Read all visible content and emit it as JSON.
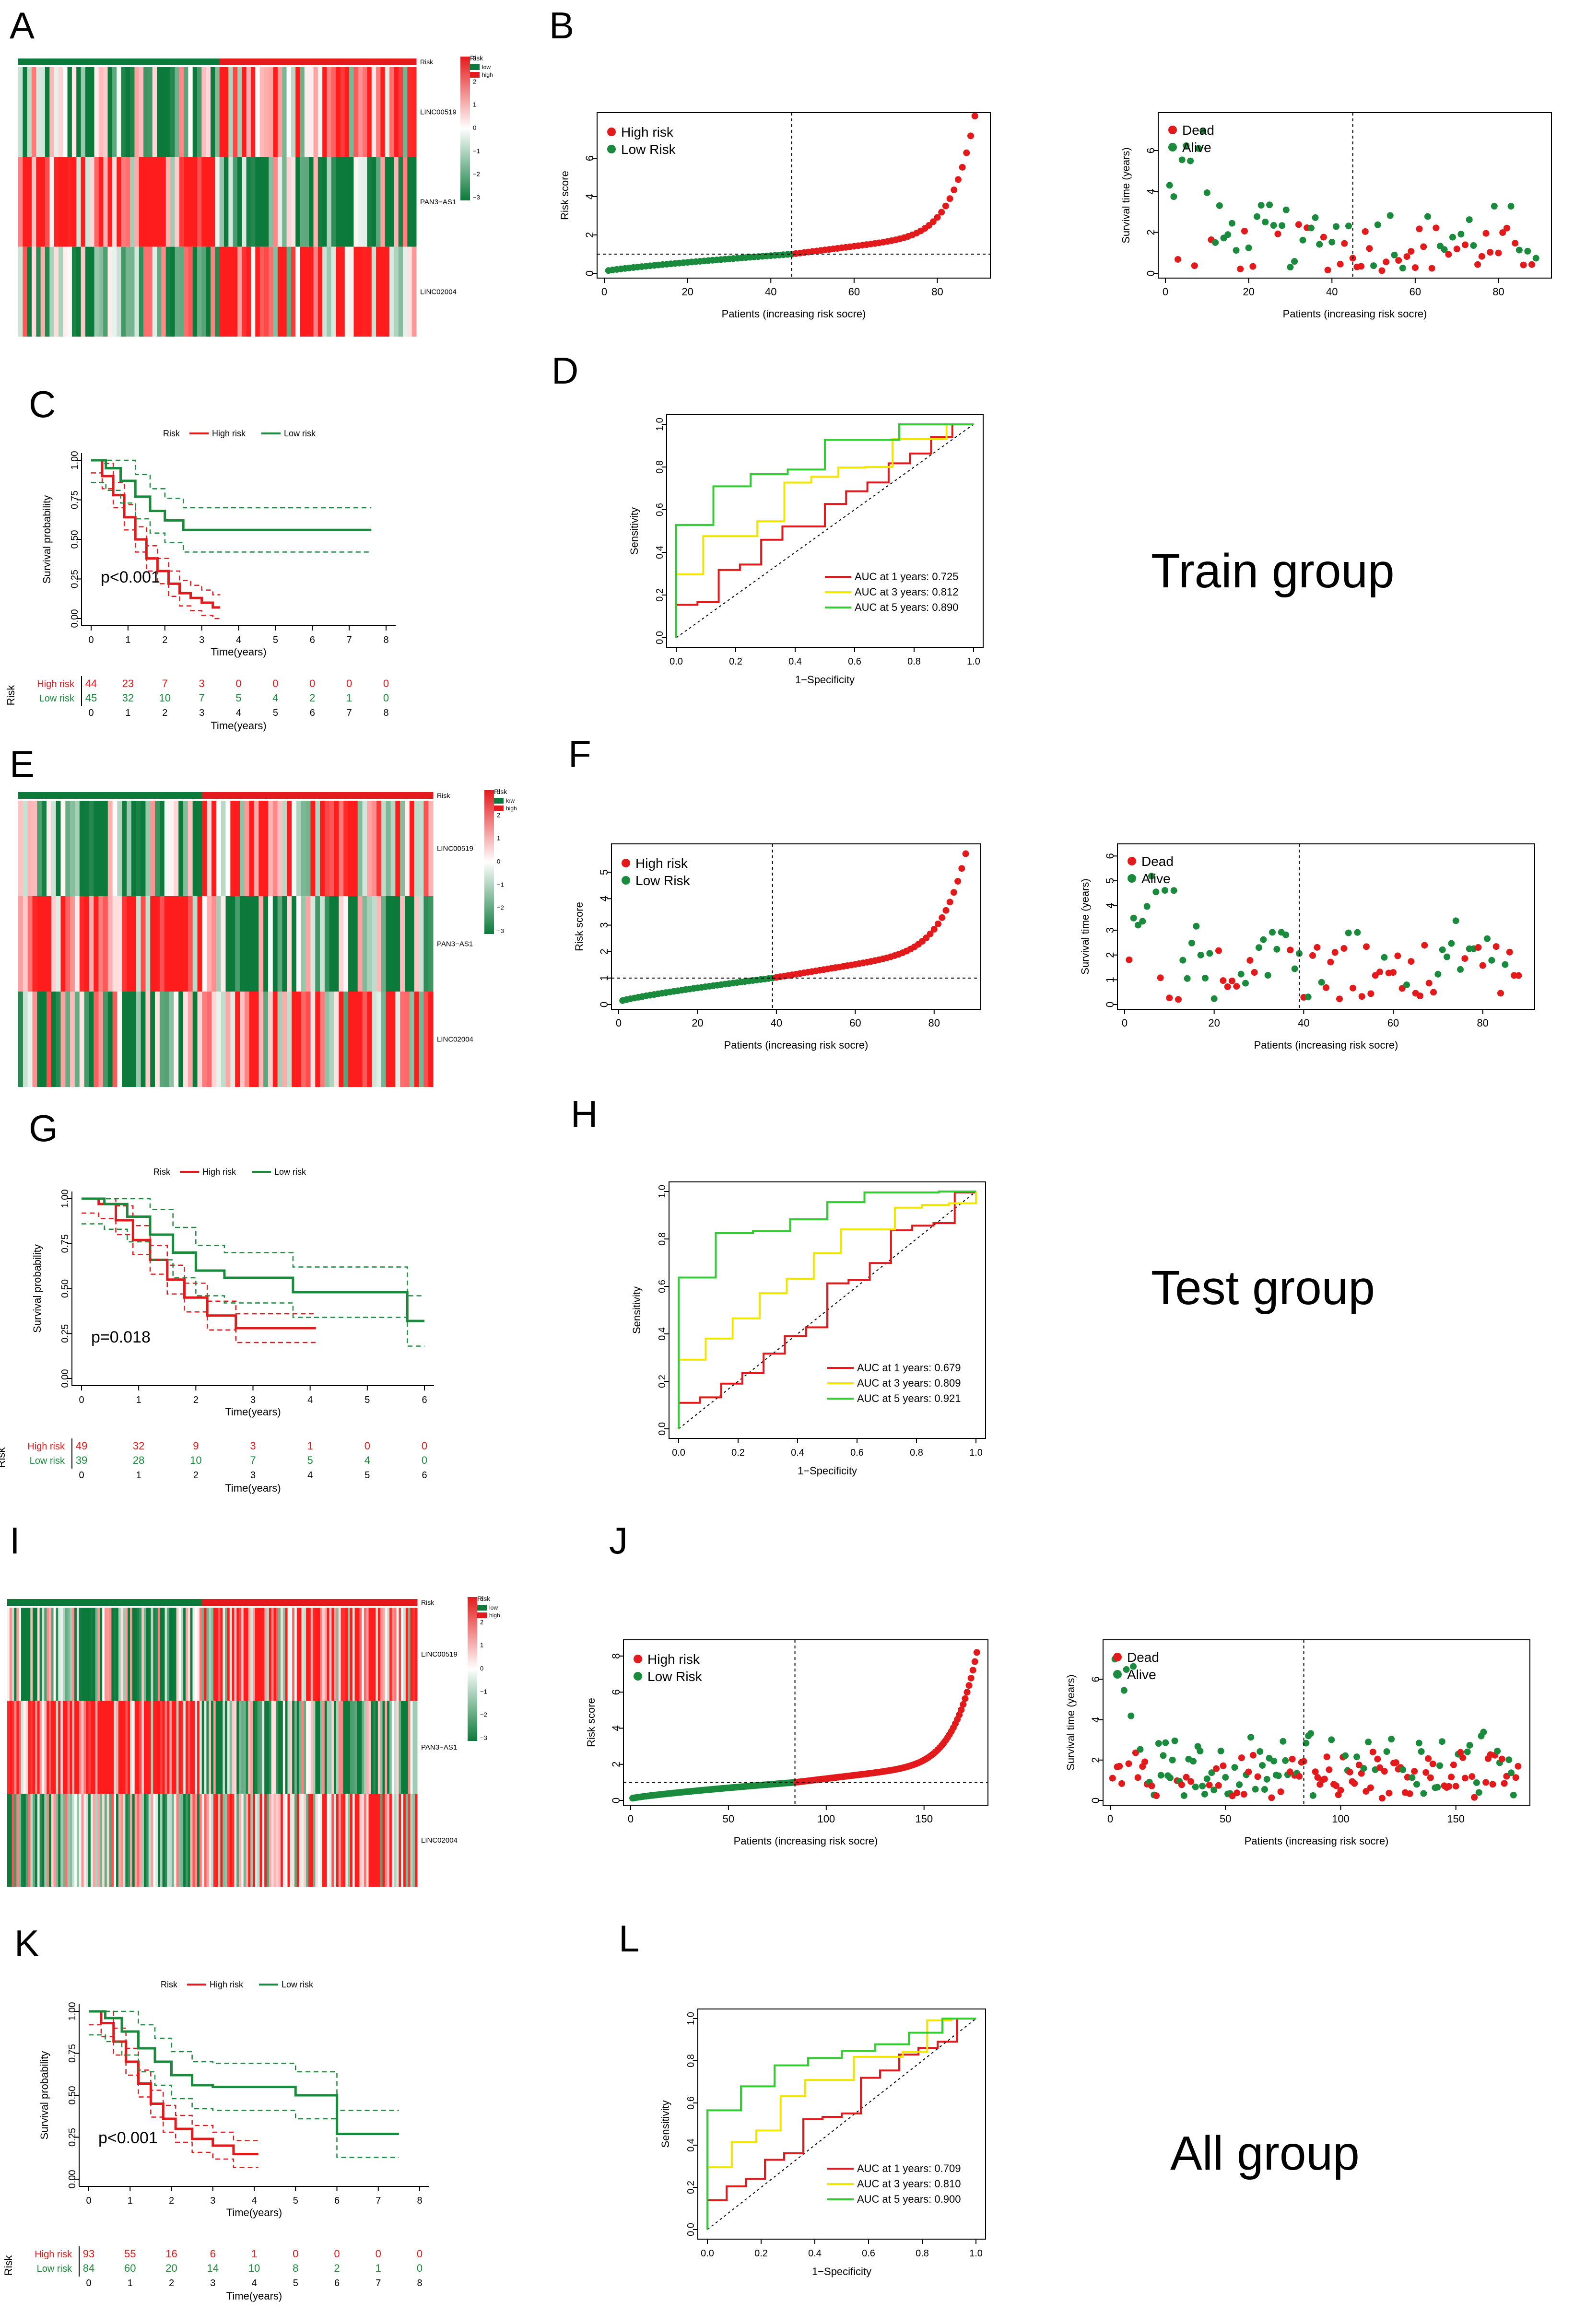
{
  "colors": {
    "high": "#e31a1c",
    "low": "#1a8a3c",
    "auc1": "#e31a1c",
    "auc3": "#f2e600",
    "auc5": "#33cc33",
    "heatRed": "#e41a1c",
    "heatGreen": "#0b7a3a"
  },
  "panel_labels": [
    "A",
    "B",
    "C",
    "D",
    "E",
    "F",
    "G",
    "H",
    "I",
    "J",
    "K",
    "L"
  ],
  "group_titles": [
    "Train group",
    "Test group",
    "All group"
  ],
  "heatmap_text": {
    "genes": [
      "LINC00519",
      "PAN3−AS1",
      "LINC02004"
    ],
    "risk_label": "Risk",
    "legend_title": "Risk",
    "legend_low": "low",
    "legend_high": "high",
    "scale_ticks": [
      "3",
      "2",
      "1",
      "0",
      "−1",
      "−2",
      "−3"
    ]
  },
  "common_text": {
    "risk_score_ylabel": "Risk score",
    "risk_xlabel": "Patients (increasing risk socre)",
    "surv_time_ylabel": "Survival time (years)",
    "high_risk": "High risk",
    "low_risk_legend": "Low Risk",
    "dead": "Dead",
    "alive": "Alive",
    "km_ylabel": "Survival probability",
    "km_xlabel": "Time(years)",
    "km_legend_title": "Risk",
    "km_legend_high": "High risk",
    "km_legend_low": "Low risk",
    "table_risk": "Risk",
    "table_high": "High risk",
    "table_low": "Low risk",
    "roc_ylabel": "Sensitivity",
    "roc_xlabel": "1−Specificity"
  },
  "chart_data": [
    {
      "id": "train_heatmap",
      "type": "heatmap",
      "n_low": 45,
      "n_high": 44,
      "genes": [
        "LINC00519",
        "PAN3−AS1",
        "LINC02004"
      ],
      "scale_range": [
        -3,
        3
      ]
    },
    {
      "id": "train_riskscore",
      "type": "scatter",
      "title": "",
      "n_patients": 89,
      "cutoff_index": 45,
      "cutoff_value": 1.0,
      "max_score": 8.2,
      "ylim": [
        0,
        8
      ],
      "yticks": [
        0,
        2,
        4,
        6
      ],
      "xticks": [
        0,
        20,
        40,
        60,
        80
      ],
      "xlabel": "Patients (increasing risk socre)",
      "ylabel": "Risk score"
    },
    {
      "id": "train_survtime",
      "type": "scatter",
      "n_patients": 89,
      "cutoff_index": 45,
      "ylim": [
        0,
        7.5
      ],
      "yticks": [
        0,
        2,
        4,
        6
      ],
      "xticks": [
        0,
        20,
        40,
        60,
        80
      ],
      "xlabel": "Patients (increasing risk socre)",
      "ylabel": "Survival time (years)"
    },
    {
      "id": "train_km",
      "type": "line",
      "pvalue": "p<0.001",
      "xlim": [
        0,
        8
      ],
      "xticks": [
        0,
        1,
        2,
        3,
        4,
        5,
        6,
        7,
        8
      ],
      "yticks": [
        "0.00",
        "0.25",
        "0.50",
        "0.75",
        "1.00"
      ],
      "series": [
        {
          "name": "High risk",
          "times": [
            0,
            0.3,
            0.6,
            0.9,
            1.2,
            1.5,
            1.8,
            2.1,
            2.4,
            2.7,
            3.0,
            3.3,
            3.5
          ],
          "surv": [
            1,
            0.9,
            0.78,
            0.64,
            0.5,
            0.38,
            0.3,
            0.22,
            0.16,
            0.13,
            0.1,
            0.07,
            0.07
          ]
        },
        {
          "name": "Low risk",
          "times": [
            0,
            0.4,
            0.8,
            1.2,
            1.6,
            2.0,
            2.5,
            3.0,
            7.6
          ],
          "surv": [
            1,
            0.95,
            0.87,
            0.77,
            0.68,
            0.62,
            0.56,
            0.56,
            0.56
          ]
        }
      ],
      "risk_table": {
        "times": [
          0,
          1,
          2,
          3,
          4,
          5,
          6,
          7,
          8
        ],
        "high": [
          "44",
          "23",
          "7",
          "3",
          "0",
          "0",
          "0",
          "0",
          "0"
        ],
        "low": [
          "45",
          "32",
          "10",
          "7",
          "5",
          "4",
          "2",
          "1",
          "0"
        ]
      }
    },
    {
      "id": "train_roc",
      "type": "line",
      "xticks": [
        "0.0",
        "0.2",
        "0.4",
        "0.6",
        "0.8",
        "1.0"
      ],
      "yticks": [
        "0.0",
        "0.2",
        "0.4",
        "0.6",
        "0.8",
        "1.0"
      ],
      "series": [
        {
          "name": "AUC at 1 years: 0.725",
          "auc": 0.725
        },
        {
          "name": "AUC at 3 years: 0.812",
          "auc": 0.812
        },
        {
          "name": "AUC at 5 years: 0.890",
          "auc": 0.89
        }
      ]
    },
    {
      "id": "test_heatmap",
      "type": "heatmap",
      "n_low": 39,
      "n_high": 49,
      "genes": [
        "LINC00519",
        "PAN3−AS1",
        "LINC02004"
      ],
      "scale_range": [
        -3,
        3
      ]
    },
    {
      "id": "test_riskscore",
      "type": "scatter",
      "n_patients": 88,
      "cutoff_index": 39,
      "cutoff_value": 1.0,
      "max_score": 5.7,
      "ylim": [
        0,
        5.8
      ],
      "yticks": [
        0,
        1,
        2,
        3,
        4,
        5
      ],
      "xticks": [
        0,
        20,
        40,
        60,
        80
      ],
      "xlabel": "Patients (increasing risk socre)",
      "ylabel": "Risk score"
    },
    {
      "id": "test_survtime",
      "type": "scatter",
      "n_patients": 88,
      "cutoff_index": 39,
      "ylim": [
        0,
        6.2
      ],
      "yticks": [
        0,
        1,
        2,
        3,
        4,
        5,
        6
      ],
      "xticks": [
        0,
        20,
        40,
        60,
        80
      ],
      "xlabel": "Patients (increasing risk socre)",
      "ylabel": "Survival time (years)"
    },
    {
      "id": "test_km",
      "type": "line",
      "pvalue": "p=0.018",
      "xlim": [
        0,
        6
      ],
      "xticks": [
        0,
        1,
        2,
        3,
        4,
        5,
        6
      ],
      "yticks": [
        "0.00",
        "0.25",
        "0.50",
        "0.75",
        "1.00"
      ],
      "series": [
        {
          "name": "High risk",
          "times": [
            0,
            0.3,
            0.6,
            0.9,
            1.2,
            1.5,
            1.8,
            2.2,
            2.7,
            3.2,
            4.1
          ],
          "surv": [
            1,
            0.97,
            0.88,
            0.77,
            0.66,
            0.55,
            0.45,
            0.35,
            0.28,
            0.28,
            0.28
          ]
        },
        {
          "name": "Low risk",
          "times": [
            0,
            0.4,
            0.8,
            1.2,
            1.6,
            2.0,
            2.5,
            3.7,
            4.8,
            5.7,
            6.0
          ],
          "surv": [
            1,
            0.97,
            0.9,
            0.8,
            0.7,
            0.6,
            0.56,
            0.48,
            0.48,
            0.32,
            0.32
          ]
        }
      ],
      "risk_table": {
        "times": [
          0,
          1,
          2,
          3,
          4,
          5,
          6
        ],
        "high": [
          "49",
          "32",
          "9",
          "3",
          "1",
          "0",
          "0"
        ],
        "low": [
          "39",
          "28",
          "10",
          "7",
          "5",
          "4",
          "0"
        ]
      }
    },
    {
      "id": "test_roc",
      "type": "line",
      "xticks": [
        "0.0",
        "0.2",
        "0.4",
        "0.6",
        "0.8",
        "1.0"
      ],
      "yticks": [
        "0.0",
        "0.2",
        "0.4",
        "0.6",
        "0.8",
        "1.0"
      ],
      "series": [
        {
          "name": "AUC at 1 years: 0.679",
          "auc": 0.679
        },
        {
          "name": "AUC at 3 years: 0.809",
          "auc": 0.809
        },
        {
          "name": "AUC at 5 years: 0.921",
          "auc": 0.921
        }
      ]
    },
    {
      "id": "all_heatmap",
      "type": "heatmap",
      "n_low": 84,
      "n_high": 93,
      "genes": [
        "LINC00519",
        "PAN3−AS1",
        "LINC02004"
      ],
      "scale_range": [
        -3,
        3
      ]
    },
    {
      "id": "all_riskscore",
      "type": "scatter",
      "n_patients": 177,
      "cutoff_index": 84,
      "cutoff_value": 1.0,
      "max_score": 8.2,
      "ylim": [
        0,
        8.5
      ],
      "yticks": [
        0,
        2,
        4,
        6,
        8
      ],
      "xticks": [
        0,
        50,
        100,
        150
      ],
      "xlabel": "Patients (increasing risk socre)",
      "ylabel": "Risk score"
    },
    {
      "id": "all_survtime",
      "type": "scatter",
      "n_patients": 177,
      "cutoff_index": 84,
      "ylim": [
        0,
        7.6
      ],
      "yticks": [
        0,
        2,
        4,
        6
      ],
      "xticks": [
        0,
        50,
        100,
        150
      ],
      "xlabel": "Patients (increasing risk socre)",
      "ylabel": "Survival time (years)"
    },
    {
      "id": "all_km",
      "type": "line",
      "pvalue": "p<0.001",
      "xlim": [
        0,
        8
      ],
      "xticks": [
        0,
        1,
        2,
        3,
        4,
        5,
        6,
        7,
        8
      ],
      "yticks": [
        "0.00",
        "0.25",
        "0.50",
        "0.75",
        "1.00"
      ],
      "series": [
        {
          "name": "High risk",
          "times": [
            0,
            0.3,
            0.6,
            0.9,
            1.2,
            1.5,
            1.8,
            2.1,
            2.5,
            3.0,
            3.5,
            4.1
          ],
          "surv": [
            1,
            0.93,
            0.82,
            0.7,
            0.57,
            0.45,
            0.36,
            0.3,
            0.24,
            0.2,
            0.15,
            0.15
          ]
        },
        {
          "name": "Low risk",
          "times": [
            0,
            0.4,
            0.8,
            1.2,
            1.6,
            2.0,
            2.5,
            3.0,
            4.0,
            5.0,
            5.6,
            6.0,
            7.5
          ],
          "surv": [
            1,
            0.96,
            0.88,
            0.78,
            0.7,
            0.62,
            0.56,
            0.55,
            0.55,
            0.5,
            0.5,
            0.27,
            0.27
          ]
        }
      ],
      "risk_table": {
        "times": [
          0,
          1,
          2,
          3,
          4,
          5,
          6,
          7,
          8
        ],
        "high": [
          "93",
          "55",
          "16",
          "6",
          "1",
          "0",
          "0",
          "0",
          "0"
        ],
        "low": [
          "84",
          "60",
          "20",
          "14",
          "10",
          "8",
          "2",
          "1",
          "0"
        ]
      }
    },
    {
      "id": "all_roc",
      "type": "line",
      "xticks": [
        "0.0",
        "0.2",
        "0.4",
        "0.6",
        "0.8",
        "1.0"
      ],
      "yticks": [
        "0.0",
        "0.2",
        "0.4",
        "0.6",
        "0.8",
        "1.0"
      ],
      "series": [
        {
          "name": "AUC at 1 years: 0.709",
          "auc": 0.709
        },
        {
          "name": "AUC at 3 years: 0.810",
          "auc": 0.81
        },
        {
          "name": "AUC at 5 years: 0.900",
          "auc": 0.9
        }
      ]
    }
  ]
}
